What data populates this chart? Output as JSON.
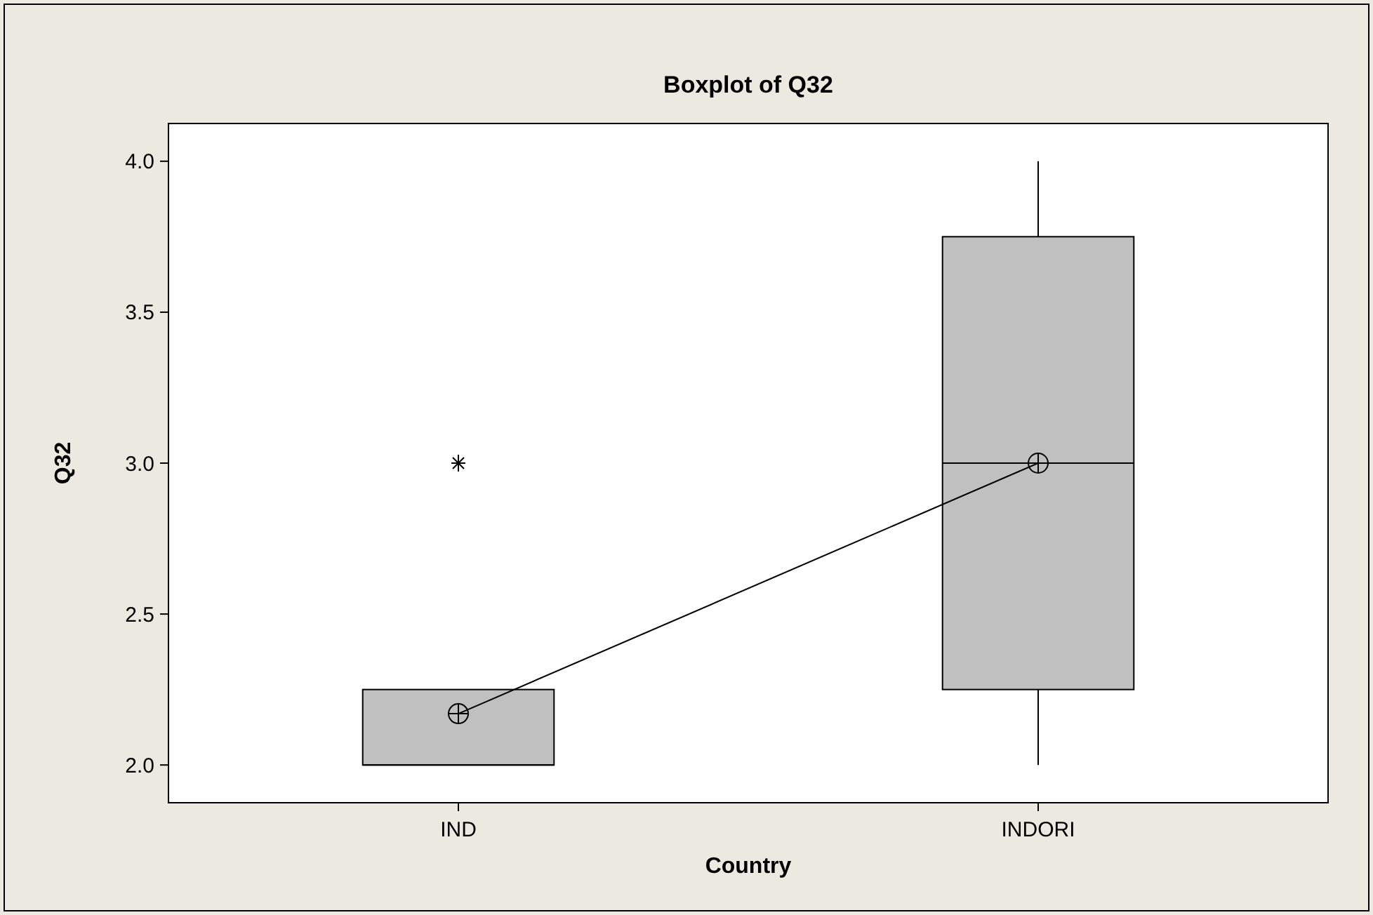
{
  "chart_data": {
    "type": "box",
    "title": "Boxplot of Q32",
    "xlabel": "Country",
    "ylabel": "Q32",
    "categories": [
      "IND",
      "INDORI"
    ],
    "ylim": [
      1.875,
      4.125
    ],
    "yticks": [
      {
        "value": 2,
        "label": "2.0"
      },
      {
        "value": 2.5,
        "label": "2.5"
      },
      {
        "value": 3,
        "label": "3.0"
      },
      {
        "value": 3.5,
        "label": "3.5"
      },
      {
        "value": 4,
        "label": "4.0"
      }
    ],
    "grid": false,
    "series": [
      {
        "color": "#c0c0c0",
        "boxes": [
          {
            "low": 2,
            "q1": 2,
            "median": 2,
            "q3": 2.25,
            "high": 2.25,
            "outliers": [
              3
            ]
          },
          {
            "low": 2,
            "q1": 2.25,
            "median": 3,
            "q3": 3.75,
            "high": 4
          }
        ]
      },
      {
        "type": "line",
        "color": "#000000",
        "marker": "circle",
        "values": [
          2.17,
          3
        ]
      }
    ]
  }
}
